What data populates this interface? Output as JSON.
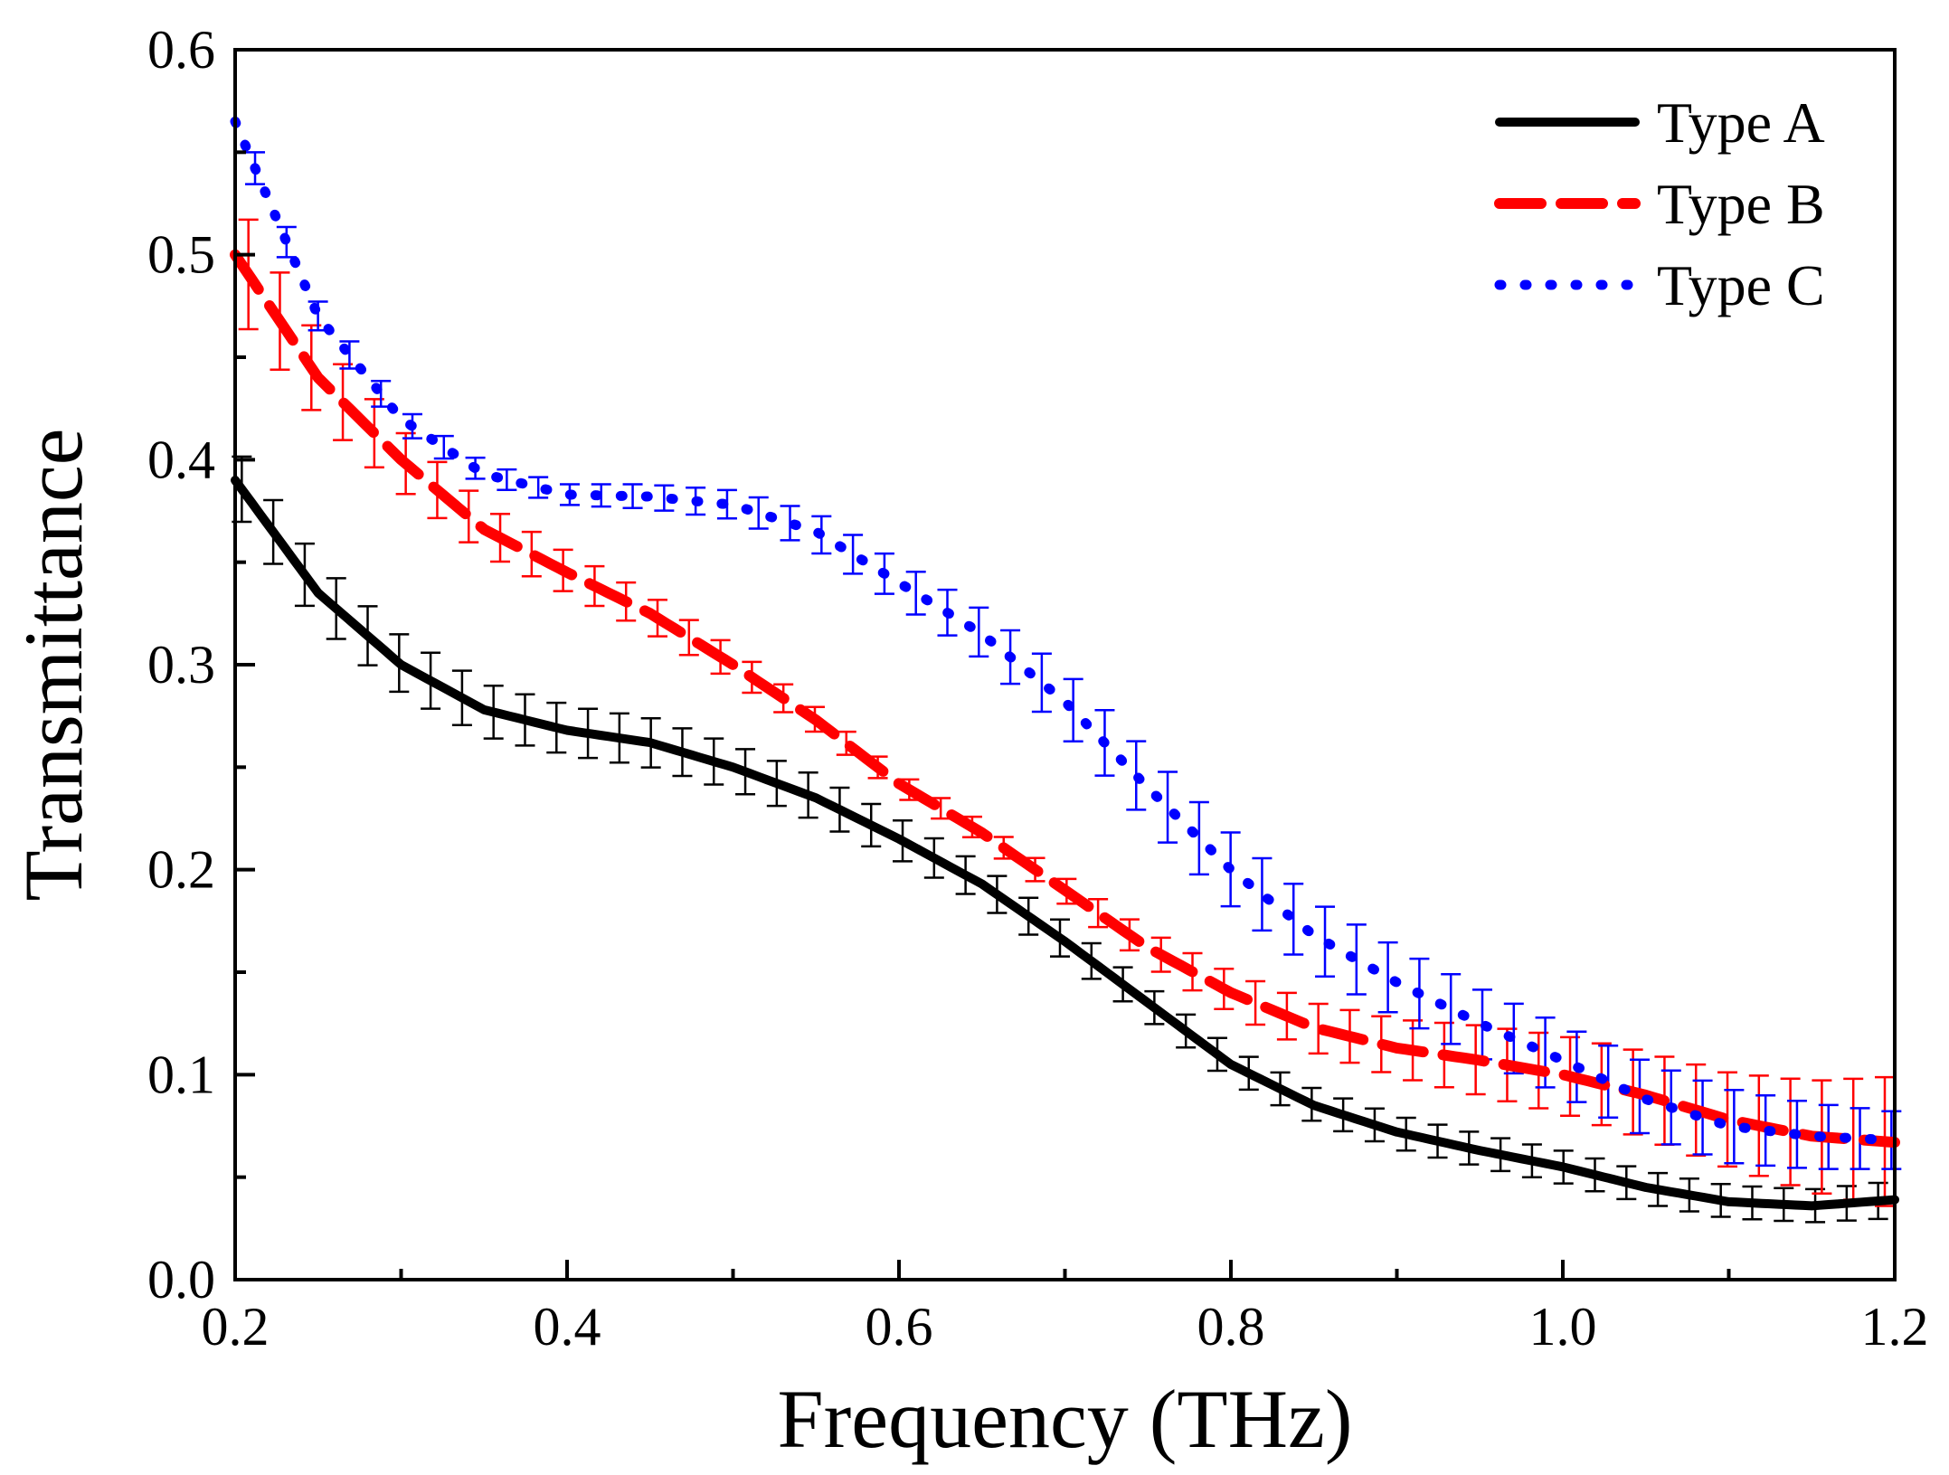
{
  "chart_data": {
    "type": "line",
    "xlabel": "Frequency (THz)",
    "ylabel": "Transmittance",
    "xlim": [
      0.2,
      1.2
    ],
    "ylim": [
      0.0,
      0.6
    ],
    "xticks": [
      0.2,
      0.4,
      0.6,
      0.8,
      1.0,
      1.2
    ],
    "xtick_labels": [
      "0.2",
      "0.4",
      "0.6",
      "0.8",
      "1.0",
      "1.2"
    ],
    "yticks": [
      0.0,
      0.1,
      0.2,
      0.3,
      0.4,
      0.5,
      0.6
    ],
    "ytick_labels": [
      "0.0",
      "0.1",
      "0.2",
      "0.3",
      "0.4",
      "0.5",
      "0.6"
    ],
    "grid": false,
    "legend_position": "top-right",
    "series": [
      {
        "name": "Type A",
        "color": "#000000",
        "line_style": "solid",
        "x": [
          0.2,
          0.25,
          0.3,
          0.35,
          0.4,
          0.45,
          0.5,
          0.55,
          0.6,
          0.65,
          0.7,
          0.75,
          0.8,
          0.85,
          0.9,
          0.95,
          1.0,
          1.05,
          1.1,
          1.15,
          1.2
        ],
        "y": [
          0.39,
          0.335,
          0.3,
          0.278,
          0.268,
          0.262,
          0.25,
          0.235,
          0.215,
          0.193,
          0.165,
          0.135,
          0.105,
          0.085,
          0.072,
          0.063,
          0.055,
          0.045,
          0.038,
          0.036,
          0.039
        ],
        "error": [
          0.016,
          0.015,
          0.014,
          0.013,
          0.012,
          0.012,
          0.011,
          0.011,
          0.01,
          0.009,
          0.009,
          0.008,
          0.008,
          0.008,
          0.008,
          0.008,
          0.008,
          0.008,
          0.008,
          0.008,
          0.009
        ]
      },
      {
        "name": "Type B",
        "color": "#ff0000",
        "line_style": "dashed",
        "x": [
          0.2,
          0.25,
          0.3,
          0.35,
          0.4,
          0.45,
          0.5,
          0.55,
          0.6,
          0.65,
          0.7,
          0.75,
          0.8,
          0.85,
          0.9,
          0.95,
          1.0,
          1.05,
          1.1,
          1.15,
          1.2
        ],
        "y": [
          0.5,
          0.44,
          0.4,
          0.366,
          0.345,
          0.325,
          0.3,
          0.273,
          0.242,
          0.218,
          0.19,
          0.162,
          0.14,
          0.123,
          0.113,
          0.107,
          0.1,
          0.09,
          0.078,
          0.07,
          0.067
        ],
        "error": [
          0.028,
          0.02,
          0.015,
          0.012,
          0.01,
          0.009,
          0.008,
          0.006,
          0.005,
          0.005,
          0.006,
          0.008,
          0.01,
          0.012,
          0.014,
          0.017,
          0.019,
          0.021,
          0.023,
          0.027,
          0.032
        ]
      },
      {
        "name": "Type C",
        "color": "#0000ff",
        "line_style": "dotted",
        "x": [
          0.2,
          0.25,
          0.3,
          0.35,
          0.4,
          0.45,
          0.5,
          0.55,
          0.6,
          0.65,
          0.7,
          0.75,
          0.8,
          0.85,
          0.9,
          0.95,
          1.0,
          1.05,
          1.1,
          1.15,
          1.2
        ],
        "y": [
          0.565,
          0.47,
          0.42,
          0.393,
          0.383,
          0.382,
          0.378,
          0.365,
          0.34,
          0.315,
          0.282,
          0.24,
          0.2,
          0.168,
          0.145,
          0.125,
          0.107,
          0.088,
          0.075,
          0.07,
          0.068
        ],
        "error": [
          0.008,
          0.007,
          0.006,
          0.005,
          0.005,
          0.006,
          0.007,
          0.009,
          0.01,
          0.012,
          0.015,
          0.017,
          0.018,
          0.017,
          0.017,
          0.017,
          0.017,
          0.018,
          0.018,
          0.016,
          0.014
        ]
      }
    ]
  }
}
